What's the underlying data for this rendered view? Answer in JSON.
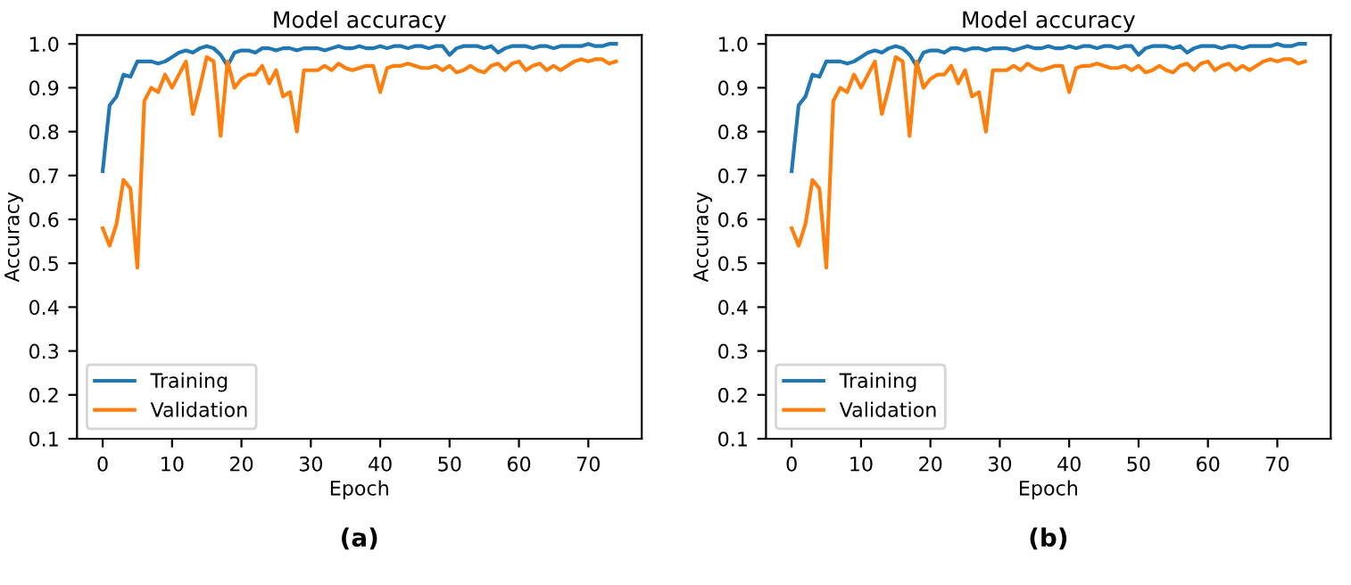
{
  "chart_data": [
    {
      "type": "line",
      "title": "Model accuracy",
      "xlabel": "Epoch",
      "ylabel": "Accuracy",
      "annotations": [
        "(a)"
      ],
      "x": [
        0,
        1,
        2,
        3,
        4,
        5,
        6,
        7,
        8,
        9,
        10,
        11,
        12,
        13,
        14,
        15,
        16,
        17,
        18,
        19,
        20,
        21,
        22,
        23,
        24,
        25,
        26,
        27,
        28,
        29,
        30,
        31,
        32,
        33,
        34,
        35,
        36,
        37,
        38,
        39,
        40,
        41,
        42,
        43,
        44,
        45,
        46,
        47,
        48,
        49,
        50,
        51,
        52,
        53,
        54,
        55,
        56,
        57,
        58,
        59,
        60,
        61,
        62,
        63,
        64,
        65,
        66,
        67,
        68,
        69,
        70,
        71,
        72,
        73,
        74
      ],
      "series": [
        {
          "name": "Training",
          "color": "#1f77b4",
          "values": [
            0.71,
            0.86,
            0.88,
            0.93,
            0.925,
            0.96,
            0.96,
            0.96,
            0.955,
            0.96,
            0.97,
            0.98,
            0.985,
            0.98,
            0.99,
            0.995,
            0.99,
            0.975,
            0.95,
            0.98,
            0.985,
            0.985,
            0.98,
            0.99,
            0.99,
            0.985,
            0.99,
            0.99,
            0.985,
            0.99,
            0.99,
            0.99,
            0.985,
            0.99,
            0.995,
            0.99,
            0.99,
            0.995,
            0.99,
            0.99,
            0.995,
            0.99,
            0.995,
            0.995,
            0.99,
            0.995,
            0.995,
            0.99,
            0.995,
            0.995,
            0.975,
            0.99,
            0.995,
            0.995,
            0.995,
            0.99,
            0.995,
            0.98,
            0.99,
            0.995,
            0.995,
            0.995,
            0.99,
            0.995,
            0.995,
            0.99,
            0.995,
            0.995,
            0.995,
            0.995,
            1.0,
            0.995,
            0.995,
            1.0,
            1.0
          ]
        },
        {
          "name": "Validation",
          "color": "#ff7f0e",
          "values": [
            0.58,
            0.54,
            0.59,
            0.69,
            0.67,
            0.49,
            0.87,
            0.9,
            0.89,
            0.93,
            0.9,
            0.93,
            0.96,
            0.84,
            0.9,
            0.97,
            0.96,
            0.79,
            0.96,
            0.9,
            0.92,
            0.93,
            0.93,
            0.95,
            0.91,
            0.94,
            0.88,
            0.89,
            0.8,
            0.94,
            0.94,
            0.94,
            0.95,
            0.94,
            0.955,
            0.945,
            0.94,
            0.945,
            0.95,
            0.95,
            0.89,
            0.945,
            0.95,
            0.95,
            0.955,
            0.95,
            0.945,
            0.945,
            0.95,
            0.94,
            0.95,
            0.935,
            0.94,
            0.95,
            0.94,
            0.935,
            0.95,
            0.955,
            0.94,
            0.955,
            0.96,
            0.94,
            0.95,
            0.955,
            0.94,
            0.95,
            0.94,
            0.95,
            0.96,
            0.965,
            0.96,
            0.965,
            0.965,
            0.955,
            0.96
          ]
        }
      ],
      "xlim": [
        -3.7,
        77.7
      ],
      "ylim": [
        0.1,
        1.02
      ],
      "xticks": [
        0,
        10,
        20,
        30,
        40,
        50,
        60,
        70
      ],
      "yticks": [
        0.1,
        0.2,
        0.3,
        0.4,
        0.5,
        0.6,
        0.7,
        0.8,
        0.9,
        {
          "value": 1,
          "label": "1.0"
        }
      ],
      "legend": "bottom left",
      "grid": false
    },
    {
      "type": "line",
      "title": "Model accuracy",
      "xlabel": "Epoch",
      "ylabel": "Accuracy",
      "annotations": [
        "(b)"
      ],
      "x": [
        0,
        1,
        2,
        3,
        4,
        5,
        6,
        7,
        8,
        9,
        10,
        11,
        12,
        13,
        14,
        15,
        16,
        17,
        18,
        19,
        20,
        21,
        22,
        23,
        24,
        25,
        26,
        27,
        28,
        29,
        30,
        31,
        32,
        33,
        34,
        35,
        36,
        37,
        38,
        39,
        40,
        41,
        42,
        43,
        44,
        45,
        46,
        47,
        48,
        49,
        50,
        51,
        52,
        53,
        54,
        55,
        56,
        57,
        58,
        59,
        60,
        61,
        62,
        63,
        64,
        65,
        66,
        67,
        68,
        69,
        70,
        71,
        72,
        73,
        74
      ],
      "series": [
        {
          "name": "Training",
          "color": "#1f77b4",
          "values": [
            0.71,
            0.86,
            0.88,
            0.93,
            0.925,
            0.96,
            0.96,
            0.96,
            0.955,
            0.96,
            0.97,
            0.98,
            0.985,
            0.98,
            0.99,
            0.995,
            0.99,
            0.975,
            0.95,
            0.98,
            0.985,
            0.985,
            0.98,
            0.99,
            0.99,
            0.985,
            0.99,
            0.99,
            0.985,
            0.99,
            0.99,
            0.99,
            0.985,
            0.99,
            0.995,
            0.99,
            0.99,
            0.995,
            0.99,
            0.99,
            0.995,
            0.99,
            0.995,
            0.995,
            0.99,
            0.995,
            0.995,
            0.99,
            0.995,
            0.995,
            0.975,
            0.99,
            0.995,
            0.995,
            0.995,
            0.99,
            0.995,
            0.98,
            0.99,
            0.995,
            0.995,
            0.995,
            0.99,
            0.995,
            0.995,
            0.99,
            0.995,
            0.995,
            0.995,
            0.995,
            1.0,
            0.995,
            0.995,
            1.0,
            1.0
          ]
        },
        {
          "name": "Validation",
          "color": "#ff7f0e",
          "values": [
            0.58,
            0.54,
            0.59,
            0.69,
            0.67,
            0.49,
            0.87,
            0.9,
            0.89,
            0.93,
            0.9,
            0.93,
            0.96,
            0.84,
            0.9,
            0.97,
            0.96,
            0.79,
            0.96,
            0.9,
            0.92,
            0.93,
            0.93,
            0.95,
            0.91,
            0.94,
            0.88,
            0.89,
            0.8,
            0.94,
            0.94,
            0.94,
            0.95,
            0.94,
            0.955,
            0.945,
            0.94,
            0.945,
            0.95,
            0.95,
            0.89,
            0.945,
            0.95,
            0.95,
            0.955,
            0.95,
            0.945,
            0.945,
            0.95,
            0.94,
            0.95,
            0.935,
            0.94,
            0.95,
            0.94,
            0.935,
            0.95,
            0.955,
            0.94,
            0.955,
            0.96,
            0.94,
            0.95,
            0.955,
            0.94,
            0.95,
            0.94,
            0.95,
            0.96,
            0.965,
            0.96,
            0.965,
            0.965,
            0.955,
            0.96
          ]
        }
      ],
      "xlim": [
        -3.7,
        77.7
      ],
      "ylim": [
        0.1,
        1.02
      ],
      "xticks": [
        0,
        10,
        20,
        30,
        40,
        50,
        60,
        70
      ],
      "yticks": [
        0.1,
        0.2,
        0.3,
        0.4,
        0.5,
        0.6,
        0.7,
        0.8,
        0.9,
        {
          "value": 1,
          "label": "1.0"
        }
      ],
      "legend": "bottom left",
      "grid": false
    }
  ]
}
